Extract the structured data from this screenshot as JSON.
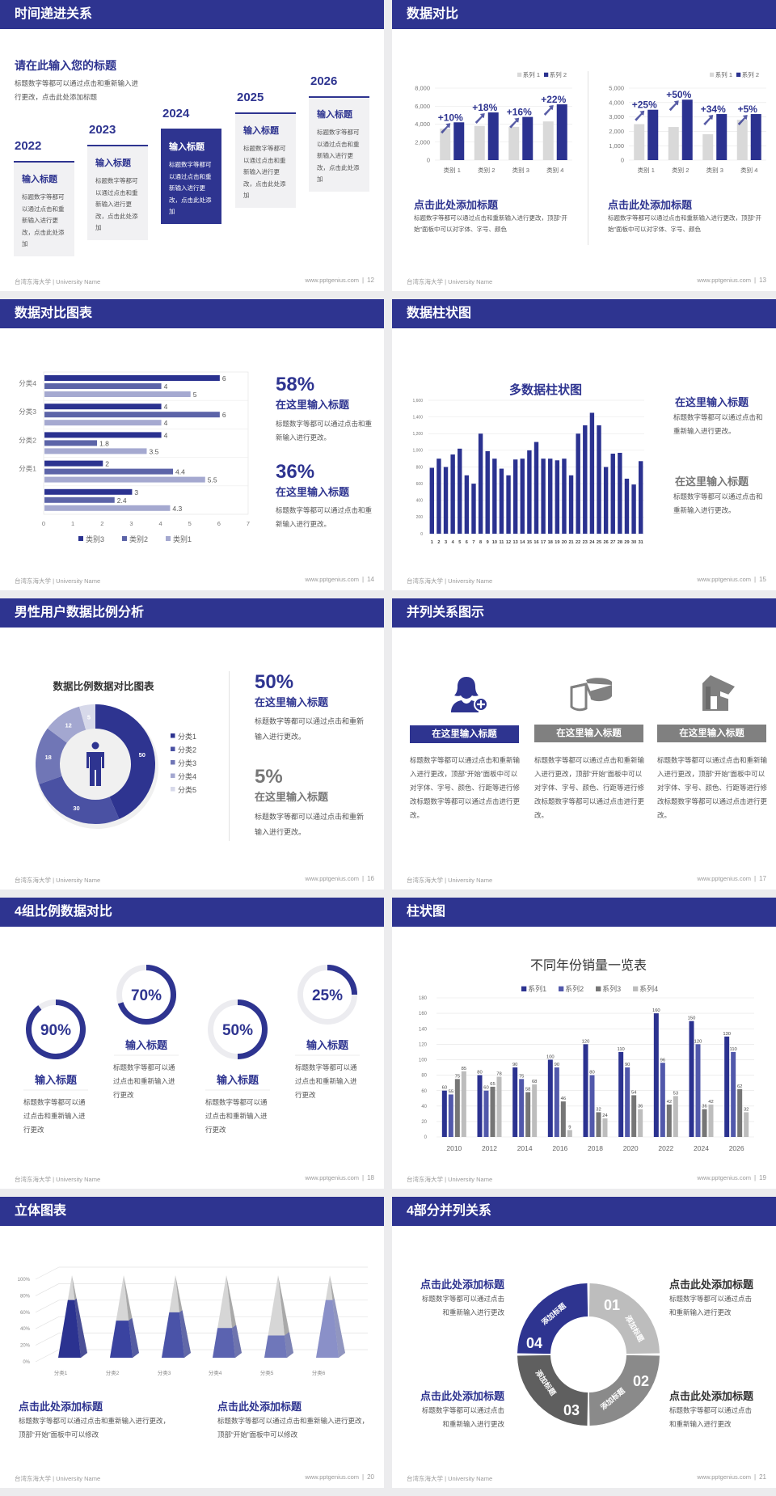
{
  "footer": {
    "school": "台湾东海大学 | University Name",
    "url": "www.pptgenius.com"
  },
  "colors": {
    "primary": "#2e3490",
    "navy_bar": "#2b3290",
    "mid_blue": "#5c64a8",
    "light_blue": "#a5a9d0",
    "gray": "#7f7f7f",
    "light_gray": "#d9d9d9",
    "dark_gray": "#5f5f5f"
  },
  "s12": {
    "title": "时间递进关系",
    "page": "12",
    "heading": "请在此输入您的标题",
    "desc1": "标题数字等都可以通过点击和重新输入进",
    "desc2": "行更改，点击此处添加标题",
    "items": [
      {
        "year": "2022",
        "title": "输入标题",
        "text": "标题数字等都可以通过点击和重新输入进行更改，点击此处添加"
      },
      {
        "year": "2023",
        "title": "输入标题",
        "text": "标题数字等都可以通过点击和重新输入进行更改，点击此处添加"
      },
      {
        "year": "2024",
        "title": "输入标题",
        "text": "标题数字等都可以通过点击和重新输入进行更改，点击此处添加"
      },
      {
        "year": "2025",
        "title": "输入标题",
        "text": "标题数字等都可以通过点击和重新输入进行更改，点击此处添加"
      },
      {
        "year": "2026",
        "title": "输入标题",
        "text": "标题数字等都可以通过点击和重新输入进行更改，点击此处添加"
      }
    ]
  },
  "s13": {
    "title": "数据对比",
    "page": "13",
    "panels": [
      {
        "heading": "点击此处添加标题",
        "text": "标题数字等都可以通过点击和重新输入进行更改，顶部“开始”面板中可以对字体、字号、颜色"
      },
      {
        "heading": "点击此处添加标题",
        "text": "标题数字等都可以通过点击和重新输入进行更改，顶部“开始”面板中可以对字体、字号、颜色"
      }
    ]
  },
  "s14": {
    "title": "数据对比图表",
    "page": "14",
    "stats": [
      {
        "value": "58%",
        "heading": "在这里输入标题",
        "text": "标题数字等都可以通过点击和重新输入进行更改。"
      },
      {
        "value": "36%",
        "heading": "在这里输入标题",
        "text": "标题数字等都可以通过点击和重新输入进行更改。"
      }
    ]
  },
  "s15": {
    "title": "数据柱状图",
    "page": "15",
    "blocks": [
      {
        "heading": "在这里输入标题",
        "text": "标题数字等都可以通过点击和重新输入进行更改。"
      },
      {
        "heading": "在这里输入标题",
        "text": "标题数字等都可以通过点击和重新输入进行更改。"
      }
    ]
  },
  "s16": {
    "title": "男性用户数据比例分析",
    "page": "16",
    "icon": "male-user-icon",
    "stats": [
      {
        "value": "50%",
        "heading": "在这里输入标题",
        "text": "标题数字等都可以通过点击和重新输入进行更改。"
      },
      {
        "value": "5%",
        "heading": "在这里输入标题",
        "text": "标题数字等都可以通过点击和重新输入进行更改。"
      }
    ]
  },
  "s17": {
    "title": "并列关系图示",
    "page": "17",
    "items": [
      {
        "icon": "female-user-add-icon",
        "label": "在这里输入标题",
        "text": "标题数字等都可以通过点击和重新输入进行更改，顶部“开始”面板中可以对字体、字号、颜色、行距等进行修改标题数字等都可以通过点击进行更改。"
      },
      {
        "icon": "pie-chart-3d-icon",
        "label": "在这里输入标题",
        "text": "标题数字等都可以通过点击和重新输入进行更改，顶部“开始”面板中可以对字体、字号、颜色、行距等进行修改标题数字等都可以通过点击进行更改。"
      },
      {
        "icon": "store-icon",
        "label": "在这里输入标题",
        "text": "标题数字等都可以通过点击和重新输入进行更改，顶部“开始”面板中可以对字体、字号、颜色、行距等进行修改标题数字等都可以通过点击进行更改。"
      }
    ]
  },
  "s18": {
    "title": "4组比例数据对比",
    "page": "18",
    "items": [
      {
        "value": "90%",
        "percent": 90,
        "heading": "输入标题",
        "text": "标题数字等都可以通过点击和重新输入进行更改"
      },
      {
        "value": "70%",
        "percent": 70,
        "heading": "输入标题",
        "text": "标题数字等都可以通过点击和重新输入进行更改"
      },
      {
        "value": "50%",
        "percent": 50,
        "heading": "输入标题",
        "text": "标题数字等都可以通过点击和重新输入进行更改"
      },
      {
        "value": "25%",
        "percent": 25,
        "heading": "输入标题",
        "text": "标题数字等都可以通过点击和重新输入进行更改"
      }
    ]
  },
  "s19": {
    "title": "柱状图",
    "page": "19"
  },
  "s20": {
    "title": "立体图表",
    "page": "20",
    "panels": [
      {
        "heading": "点击此处添加标题",
        "text": "标题数字等都可以通过点击和重新输入进行更改，顶部“开始”面板中可以修改"
      },
      {
        "heading": "点击此处添加标题",
        "text": "标题数字等都可以通过点击和重新输入进行更改，顶部“开始”面板中可以修改"
      }
    ]
  },
  "s21": {
    "title": "4部分并列关系",
    "page": "21",
    "segments": [
      {
        "num": "01",
        "label": "添加标题"
      },
      {
        "num": "02",
        "label": "添加标题"
      },
      {
        "num": "03",
        "label": "添加标题"
      },
      {
        "num": "04",
        "label": "添加标题"
      }
    ],
    "blocks": [
      {
        "heading": "点击此处添加标题",
        "text1": "标题数字等都可以通过点击",
        "text2": "和重新输入进行更改"
      },
      {
        "heading": "点击此处添加标题",
        "text1": "标题数字等都可以通过点击",
        "text2": "和重新输入进行更改"
      },
      {
        "heading": "点击此处添加标题",
        "text1": "标题数字等都可以通过点击",
        "text2": "和重新输入进行更改"
      },
      {
        "heading": "点击此处添加标题",
        "text1": "标题数字等都可以通过点击",
        "text2": "和重新输入进行更改"
      }
    ]
  },
  "chart_data": [
    {
      "type": "bar",
      "categories": [
        "类别 1",
        "类别 2",
        "类别 3",
        "类别 4"
      ],
      "series": [
        {
          "name": "系列 1",
          "values": [
            3500,
            3800,
            3700,
            4300
          ]
        },
        {
          "name": "系列 2",
          "values": [
            4200,
            5300,
            4800,
            6200
          ]
        }
      ],
      "ylim": [
        0,
        8000
      ],
      "yticks": [
        0,
        2000,
        4000,
        6000,
        8000
      ],
      "ytick_labels": [
        "0",
        "2,000",
        "4,000",
        "6,000",
        "8,000"
      ],
      "annotations": [
        "+10%",
        "+18%",
        "+16%",
        "+22%"
      ],
      "legend": "top-right",
      "grid": true
    },
    {
      "type": "bar",
      "categories": [
        "类别 1",
        "类别 2",
        "类别 3",
        "类别 4"
      ],
      "series": [
        {
          "name": "系列 1",
          "values": [
            2500,
            2300,
            1800,
            2800
          ]
        },
        {
          "name": "系列 2",
          "values": [
            3500,
            4200,
            3200,
            3200
          ]
        }
      ],
      "ylim": [
        0,
        5000
      ],
      "yticks": [
        0,
        1000,
        2000,
        3000,
        4000,
        5000
      ],
      "ytick_labels": [
        "0",
        "1,000",
        "2,000",
        "3,000",
        "4,000",
        "5,000"
      ],
      "annotations": [
        "+25%",
        "+50%",
        "+34%",
        "+5%"
      ],
      "legend": "top-right",
      "grid": true
    },
    {
      "type": "bar",
      "orientation": "horizontal",
      "categories": [
        "分类4",
        "分类3",
        "分类2",
        "分类1",
        ""
      ],
      "series": [
        {
          "name": "类别3",
          "values": [
            6,
            4,
            4,
            2,
            3
          ]
        },
        {
          "name": "类别2",
          "values": [
            4,
            6,
            1.8,
            4.4,
            2.4
          ]
        },
        {
          "name": "类别1",
          "values": [
            5,
            4,
            3.5,
            5.5,
            4.3
          ]
        }
      ],
      "xlim": [
        0,
        7
      ],
      "xticks": [
        0,
        1,
        2,
        3,
        4,
        5,
        6,
        7
      ],
      "xtick_labels": [
        "0",
        "1",
        "2",
        "3",
        "4",
        "5",
        "6",
        "7"
      ],
      "legend": "bottom",
      "grid": true
    },
    {
      "type": "bar",
      "title": "多数据柱状图",
      "categories": [
        "1",
        "2",
        "3",
        "4",
        "5",
        "6",
        "7",
        "8",
        "9",
        "10",
        "11",
        "12",
        "13",
        "14",
        "15",
        "16",
        "17",
        "18",
        "19",
        "20",
        "21",
        "22",
        "23",
        "24",
        "25",
        "26",
        "27",
        "28",
        "29",
        "30",
        "31"
      ],
      "values": [
        790,
        900,
        800,
        950,
        1020,
        700,
        600,
        1200,
        990,
        900,
        780,
        700,
        890,
        900,
        1000,
        1100,
        900,
        900,
        880,
        900,
        700,
        1200,
        1300,
        1450,
        1300,
        800,
        960,
        970,
        660,
        590,
        870
      ],
      "ylim": [
        0,
        1600
      ],
      "yticks": [
        0,
        200,
        400,
        600,
        800,
        1000,
        1200,
        1400,
        1600
      ],
      "ytick_labels": [
        "0",
        "200",
        "400",
        "600",
        "800",
        "1,000",
        "1,200",
        "1,400",
        "1,600"
      ],
      "grid": true
    },
    {
      "type": "pie",
      "donut": true,
      "title": "数据比例数据对比图表",
      "categories": [
        "分类1",
        "分类2",
        "分类3",
        "分类4",
        "分类5"
      ],
      "values": [
        50,
        30,
        18,
        12,
        5
      ],
      "legend": "right"
    },
    {
      "type": "bar",
      "title": "不同年份销量一览表",
      "categories": [
        "2010",
        "2012",
        "2014",
        "2016",
        "2018",
        "2020",
        "2022",
        "2024",
        "2026"
      ],
      "series": [
        {
          "name": "系列1",
          "values": [
            60,
            80,
            90,
            100,
            120,
            110,
            160,
            150,
            130
          ]
        },
        {
          "name": "系列2",
          "values": [
            55,
            60,
            75,
            90,
            80,
            90,
            96,
            120,
            110
          ]
        },
        {
          "name": "系列3",
          "values": [
            75,
            65,
            58,
            46,
            32,
            54,
            42,
            36,
            62
          ]
        },
        {
          "name": "系列4",
          "values": [
            85,
            78,
            68,
            9,
            24,
            36,
            53,
            42,
            32
          ]
        }
      ],
      "ylim": [
        0,
        180
      ],
      "yticks": [
        0,
        20,
        40,
        60,
        80,
        100,
        120,
        140,
        160,
        180
      ],
      "ytick_labels": [
        "0",
        "20",
        "40",
        "60",
        "80",
        "100",
        "120",
        "140",
        "160",
        "180"
      ],
      "legend": "top",
      "grid": true
    },
    {
      "type": "bar",
      "style": "3d-pyramid",
      "categories": [
        "分类1",
        "分类2",
        "分类3",
        "分类4",
        "分类5",
        "分类6"
      ],
      "values": [
        70,
        45,
        55,
        36,
        27,
        70
      ],
      "ylim": [
        0,
        100
      ],
      "yticks": [
        0,
        20,
        40,
        60,
        80,
        100
      ],
      "ytick_labels": [
        "0%",
        "20%",
        "40%",
        "60%",
        "80%",
        "100%"
      ],
      "grid": true
    }
  ]
}
